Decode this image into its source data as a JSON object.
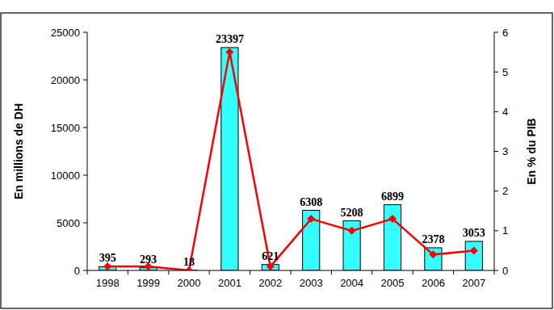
{
  "chart_data": {
    "type": "bar",
    "categories": [
      "1998",
      "1999",
      "2000",
      "2001",
      "2002",
      "2003",
      "2004",
      "2005",
      "2006",
      "2007"
    ],
    "y_label": "En millions de DH",
    "y2_label": "En % du PIB",
    "ylim": [
      0,
      25000
    ],
    "yticks": [
      0,
      5000,
      10000,
      15000,
      20000,
      25000
    ],
    "y2lim": [
      0,
      6
    ],
    "y2ticks": [
      0,
      1,
      2,
      3,
      4,
      5,
      6
    ],
    "series": [
      {
        "type": "bar",
        "color": "#33ffff",
        "data_labels": true,
        "values": [
          395,
          293,
          18,
          23397,
          621,
          6308,
          5208,
          6899,
          2378,
          3053
        ]
      },
      {
        "type": "line",
        "axis": "y2",
        "color": "#ff0000",
        "marker": "diamond",
        "values": [
          0.1,
          0.1,
          0.0,
          5.5,
          0.1,
          1.3,
          1.0,
          1.3,
          0.4,
          0.5
        ]
      }
    ]
  }
}
